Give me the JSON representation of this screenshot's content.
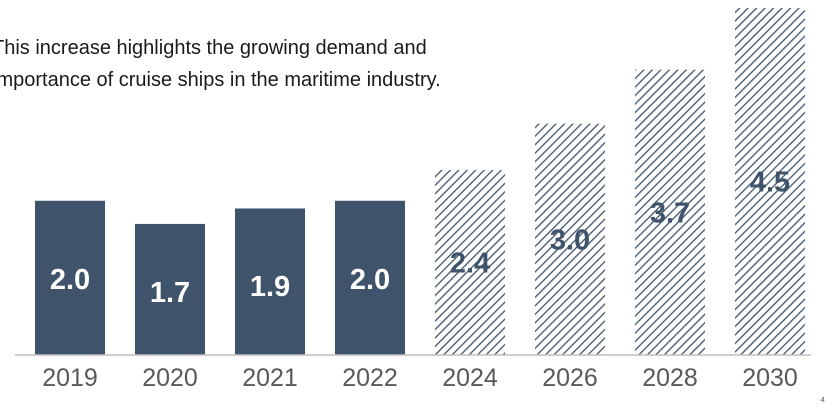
{
  "annotation": {
    "line1": "This increase highlights the growing demand and",
    "line2": "importance of cruise ships in the maritime industry."
  },
  "colors": {
    "actual_bar": "#3f546b",
    "forecast_hatch": "#3f546b",
    "forecast_bg": "#ffffff",
    "actual_label": "#ffffff",
    "forecast_label": "#3f546b",
    "axis_line": "#bfbfbf"
  },
  "chart_data": {
    "type": "bar",
    "categories": [
      "2019",
      "2020",
      "2021",
      "2022",
      "2024",
      "2026",
      "2028",
      "2030"
    ],
    "values": [
      2.0,
      1.7,
      1.9,
      2.0,
      2.4,
      3.0,
      3.7,
      4.5
    ],
    "value_labels": [
      "2.0",
      "1.7",
      "1.9",
      "2.0",
      "2.4",
      "3.0",
      "3.7",
      "4.5"
    ],
    "forecast": [
      false,
      false,
      false,
      false,
      true,
      true,
      true,
      true
    ],
    "ylim": [
      0,
      4.5
    ],
    "grid": false,
    "legend": "none"
  },
  "corner_mark": "₄"
}
